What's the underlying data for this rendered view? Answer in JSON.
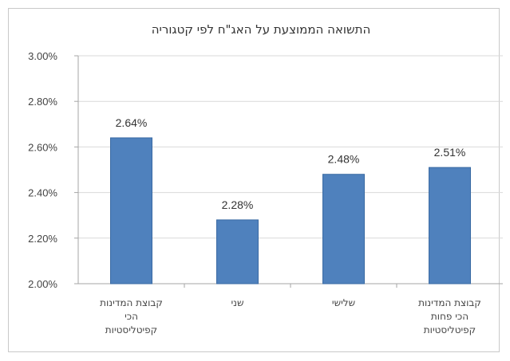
{
  "chart_data": {
    "type": "bar",
    "title": "התשואה הממוצעת על האג\"ח לפי קטגוריה",
    "categories": [
      "קבוצת המדינות הכי קפיטליסטיות",
      "שני",
      "שלישי",
      "קבוצת המדינות הכי פחות קפיטליסטיות"
    ],
    "values": [
      2.64,
      2.28,
      2.48,
      2.51
    ],
    "data_labels": [
      "2.64%",
      "2.28%",
      "2.48%",
      "2.51%"
    ],
    "y_ticks": [
      "3.00%",
      "2.80%",
      "2.60%",
      "2.40%",
      "2.20%",
      "2.00%"
    ],
    "ylim": [
      2.0,
      3.0
    ],
    "grid": true,
    "legend": "none",
    "colors": {
      "bar": "#4f81bd",
      "bar_edge": "#3a6aa3",
      "grid": "#d9d9d9",
      "axis": "#a6a6a6"
    }
  }
}
